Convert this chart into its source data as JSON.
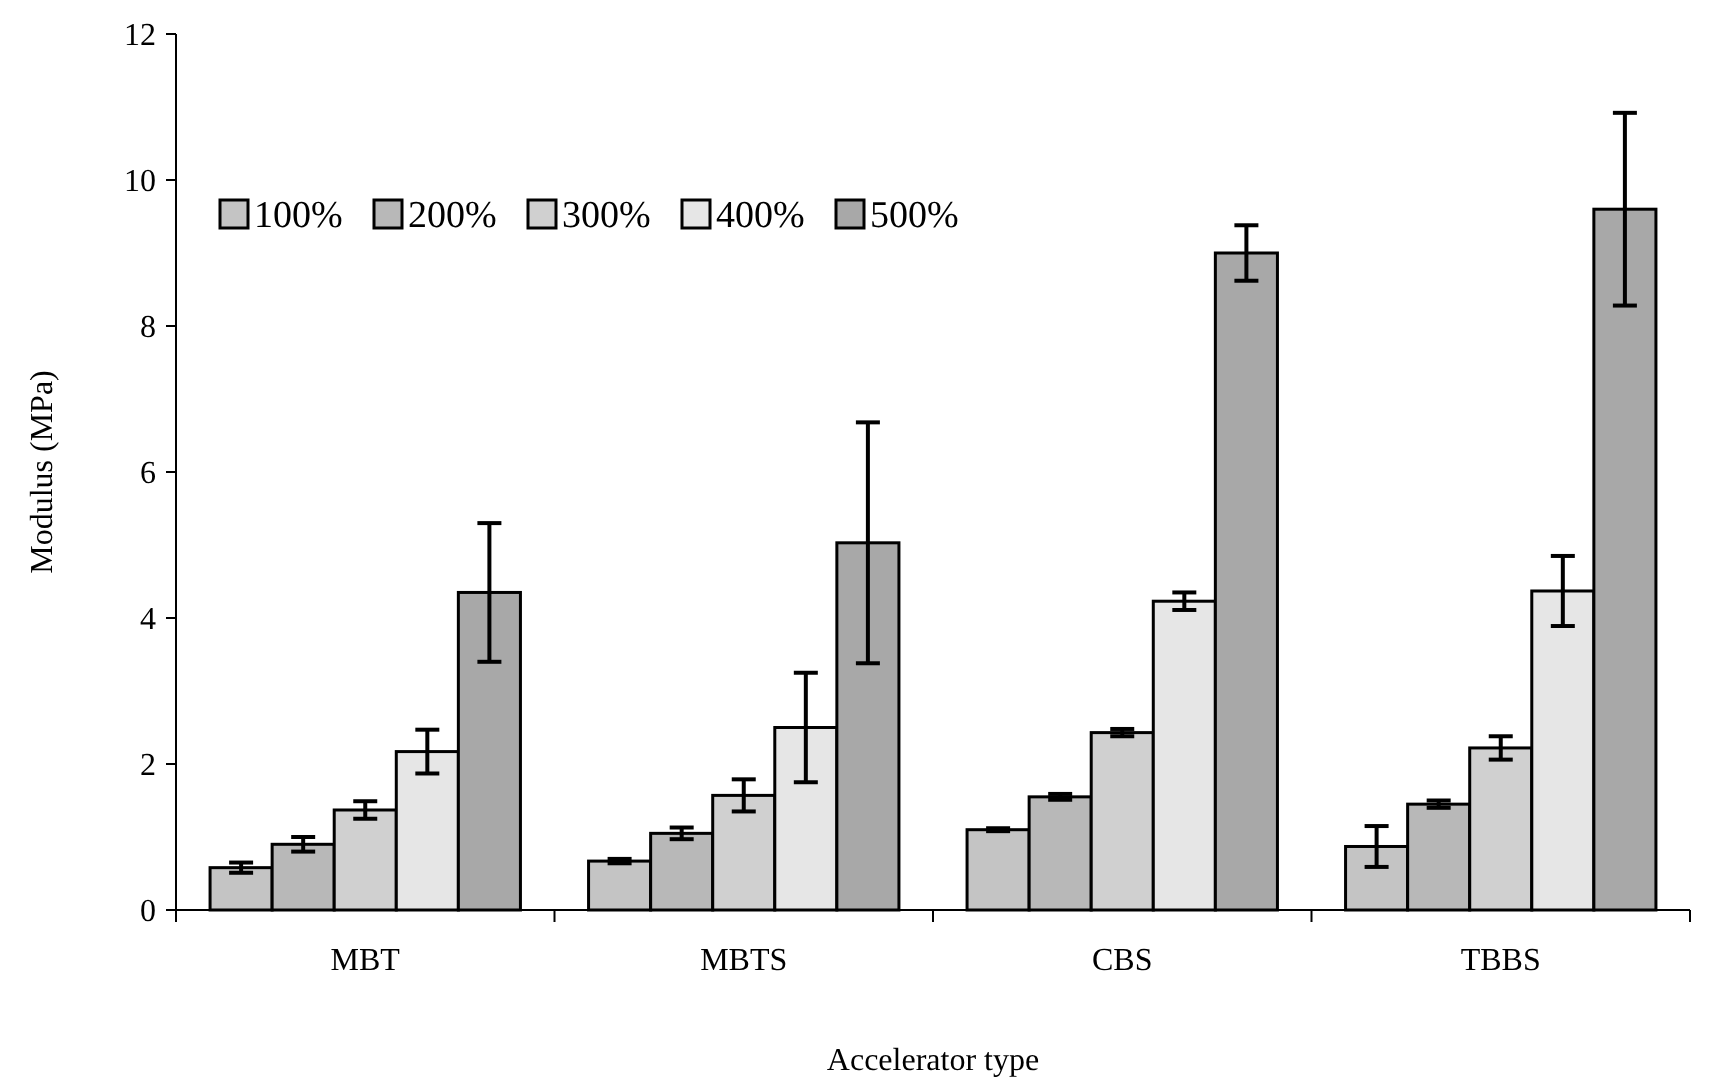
{
  "chart_data": {
    "type": "bar",
    "xlabel": "Accelerator type",
    "ylabel": "Modulus (MPa)",
    "categories": [
      "MBT",
      "MBTS",
      "CBS",
      "TBBS"
    ],
    "ylim": [
      0,
      12
    ],
    "yticks": [
      0,
      2,
      4,
      6,
      8,
      10,
      12
    ],
    "grid": false,
    "legend": "top left",
    "series": [
      {
        "name": "100%",
        "color": "#c4c4c4",
        "values": [
          0.58,
          0.67,
          1.1,
          0.87
        ],
        "errors": [
          0.07,
          0.03,
          0.02,
          0.28
        ]
      },
      {
        "name": "200%",
        "color": "#b8b8b8",
        "values": [
          0.9,
          1.05,
          1.55,
          1.45
        ],
        "errors": [
          0.1,
          0.08,
          0.04,
          0.05
        ]
      },
      {
        "name": "300%",
        "color": "#d0d0d0",
        "values": [
          1.37,
          1.57,
          2.43,
          2.22
        ],
        "errors": [
          0.12,
          0.22,
          0.05,
          0.16
        ]
      },
      {
        "name": "400%",
        "color": "#e6e6e6",
        "values": [
          2.17,
          2.5,
          4.23,
          4.37
        ],
        "errors": [
          0.3,
          0.75,
          0.12,
          0.48
        ]
      },
      {
        "name": "500%",
        "color": "#a8a8a8",
        "values": [
          4.35,
          5.03,
          9.0,
          9.6
        ],
        "errors": [
          0.95,
          1.65,
          0.38,
          1.32
        ]
      }
    ]
  }
}
